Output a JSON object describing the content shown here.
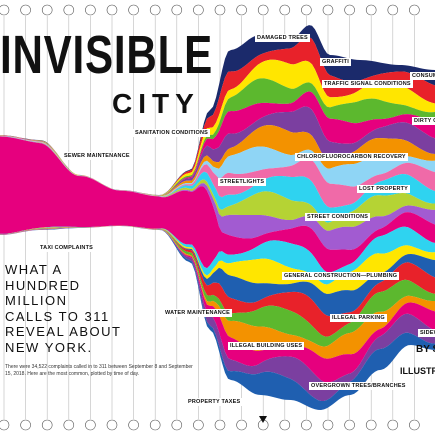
{
  "title": "INVISIBLE",
  "title_2": "CITY",
  "headline": [
    "WHAT A",
    "HUNDRED",
    "MILLION",
    "CALLS TO 311",
    "REVEAL ABOUT",
    "NEW YORK."
  ],
  "caption": "There were 34,522 complaints called in to 311 between September 8 and September 15, 2018. Here are the most common, plotted by time of day.",
  "byline": [
    "BY S",
    "ILLUSTR"
  ],
  "labels": [
    "DAMAGED TREES",
    "GRAFFITI",
    "TRAFFIC SIGNAL CONDITIONS",
    "CONSUM",
    "DIRTY CO",
    "SANITATION CONDITIONS",
    "SEWER MAINTENANCE",
    "CHLOROFLUOROCARBON RECOVERY",
    "STREETLIGHTS",
    "LOST PROPERTY",
    "STREET CONDITIONS",
    "TAXI COMPLAINTS",
    "GENERAL CONSTRUCTION—PLUMBING",
    "WATER MAINTENANCE",
    "ILLEGAL PARKING",
    "SIDEW",
    "ILLEGAL BUILDING USES",
    "OVERGROWN TREES/BRANCHES",
    "PROPERTY TAXES"
  ]
}
